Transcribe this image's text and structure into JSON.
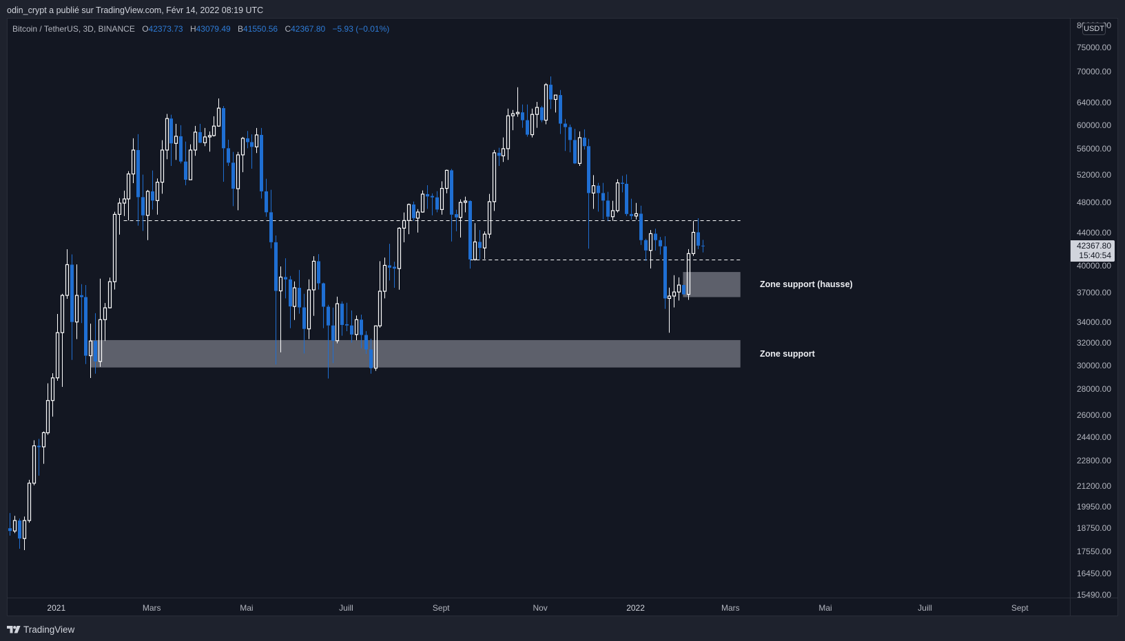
{
  "header": {
    "published_text": "odin_crypt a publié sur TradingView.com, Févr 14, 2022 08:19 UTC"
  },
  "legend": {
    "symbol": "Bitcoin / TetherUS, 3D, BINANCE",
    "ohlc": [
      {
        "label": "O",
        "value": "42373.73"
      },
      {
        "label": "H",
        "value": "43079.49"
      },
      {
        "label": "B",
        "value": "41550.56"
      },
      {
        "label": "C",
        "value": "42367.80"
      }
    ],
    "change": "−5.93 (−0.01%)"
  },
  "price_axis": {
    "currency": "USDT",
    "labels": [
      "80000.00",
      "75000.00",
      "70000.00",
      "64000.00",
      "60000.00",
      "56000.00",
      "52000.00",
      "48000.00",
      "44000.00",
      "40000.00",
      "37000.00",
      "34000.00",
      "32000.00",
      "30000.00",
      "28000.00",
      "26000.00",
      "24400.00",
      "22800.00",
      "21200.00",
      "19950.00",
      "18750.00",
      "17550.00",
      "16450.00",
      "15490.00"
    ],
    "last_price": "42367.80",
    "countdown": "15:40:54"
  },
  "time_axis": {
    "labels": [
      {
        "text": "2021",
        "bar": 9.8,
        "year": true
      },
      {
        "text": "Mars",
        "bar": 29.9
      },
      {
        "text": "Mai",
        "bar": 49.9
      },
      {
        "text": "Juill",
        "bar": 70.9
      },
      {
        "text": "Sept",
        "bar": 90.9
      },
      {
        "text": "Nov",
        "bar": 111.8
      },
      {
        "text": "2022",
        "bar": 131.9,
        "year": true
      },
      {
        "text": "Mars",
        "bar": 151.9
      },
      {
        "text": "Mai",
        "bar": 171.9
      },
      {
        "text": "Juill",
        "bar": 192.9
      },
      {
        "text": "Sept",
        "bar": 212.9
      }
    ]
  },
  "footer": {
    "brand": "TradingView",
    "logo_icon": "tradingview-logo-icon"
  },
  "colors": {
    "background": "#131722",
    "up_candle": "#ffffff",
    "down_candle": "#1f6fd3",
    "zone": "#5d606b",
    "dashed_line": "#ffffff",
    "legend_value": "#2e7bd6",
    "last_price_label": "#d1d4dc"
  },
  "chart_data": {
    "type": "candlestick",
    "title": "Bitcoin / TetherUS, 3D, BINANCE",
    "interval": "3D",
    "xlabel": "",
    "ylabel": "USDT",
    "yscale": "log",
    "ylim": [
      15490,
      80000
    ],
    "grid": false,
    "legend_position": "top-left",
    "ohlc_keys": [
      "open",
      "high",
      "low",
      "close"
    ],
    "last": {
      "open": 42373.73,
      "high": 43079.49,
      "low": 41550.56,
      "close": 42367.8,
      "change": -5.93,
      "change_pct": -0.01
    },
    "y_ticks": [
      80000,
      75000,
      70000,
      64000,
      60000,
      56000,
      52000,
      48000,
      44000,
      40000,
      37000,
      34000,
      32000,
      30000,
      28000,
      26000,
      24400,
      22800,
      21200,
      19950,
      18750,
      17550,
      16450,
      15490
    ],
    "x_ticks": [
      "2021",
      "Mars",
      "Mai",
      "Juill",
      "Sept",
      "Nov",
      "2022",
      "Mars",
      "Mai",
      "Juill",
      "Sept"
    ],
    "candles": [
      [
        18760,
        19600,
        18360,
        18610
      ],
      [
        18610,
        19440,
        18500,
        19180
      ],
      [
        19180,
        19290,
        17680,
        18210
      ],
      [
        18210,
        19400,
        17610,
        19180
      ],
      [
        19180,
        21570,
        19060,
        21360
      ],
      [
        21360,
        24170,
        21230,
        23790
      ],
      [
        23790,
        24270,
        21830,
        23700
      ],
      [
        23720,
        24800,
        22590,
        24710
      ],
      [
        24700,
        28490,
        24560,
        27110
      ],
      [
        27110,
        29330,
        25880,
        28940
      ],
      [
        28940,
        34800,
        28700,
        32970
      ],
      [
        32970,
        36880,
        28200,
        36710
      ],
      [
        36710,
        41930,
        36350,
        40110
      ],
      [
        40110,
        41320,
        30480,
        34000
      ],
      [
        34000,
        40140,
        32360,
        36710
      ],
      [
        36730,
        37920,
        33890,
        36530
      ],
      [
        36530,
        37820,
        30120,
        30850
      ],
      [
        30850,
        33830,
        28930,
        32190
      ],
      [
        32190,
        34870,
        29290,
        30340
      ],
      [
        30340,
        38520,
        29880,
        34230
      ],
      [
        34230,
        35910,
        32190,
        35420
      ],
      [
        35420,
        38650,
        35350,
        38190
      ],
      [
        38190,
        46710,
        37340,
        46370
      ],
      [
        46370,
        48600,
        43740,
        47900
      ],
      [
        47900,
        49650,
        46150,
        48480
      ],
      [
        48480,
        52520,
        45570,
        52100
      ],
      [
        52100,
        57740,
        50740,
        55820
      ],
      [
        55820,
        58440,
        44880,
        48730
      ],
      [
        48730,
        52000,
        44210,
        46240
      ],
      [
        46240,
        49750,
        43050,
        49550
      ],
      [
        49550,
        52620,
        47020,
        48250
      ],
      [
        48250,
        51420,
        46330,
        50880
      ],
      [
        50880,
        57430,
        49220,
        55820
      ],
      [
        55820,
        61940,
        54360,
        61130
      ],
      [
        61130,
        61810,
        53320,
        56900
      ],
      [
        56900,
        60200,
        54250,
        58080
      ],
      [
        58080,
        59960,
        53710,
        54000
      ],
      [
        54000,
        57200,
        50430,
        51240
      ],
      [
        51240,
        56750,
        51200,
        55820
      ],
      [
        55820,
        59850,
        54900,
        58780
      ],
      [
        58780,
        60200,
        56950,
        57010
      ],
      [
        57010,
        59490,
        56450,
        57970
      ],
      [
        57970,
        58900,
        55560,
        58200
      ],
      [
        58200,
        61530,
        58030,
        59810
      ],
      [
        59810,
        64770,
        59700,
        62990
      ],
      [
        62990,
        63370,
        50940,
        56110
      ],
      [
        56110,
        57510,
        53320,
        53820
      ],
      [
        53820,
        55520,
        47490,
        49930
      ],
      [
        49930,
        55520,
        46930,
        55050
      ],
      [
        55050,
        57970,
        52370,
        57740
      ],
      [
        57740,
        58980,
        56110,
        57110
      ],
      [
        57110,
        58400,
        52900,
        56330
      ],
      [
        56330,
        59490,
        55340,
        58310
      ],
      [
        58310,
        59490,
        48540,
        49550
      ],
      [
        49550,
        51390,
        46060,
        46650
      ],
      [
        46650,
        49780,
        42040,
        42790
      ],
      [
        42790,
        43630,
        30080,
        37190
      ],
      [
        37190,
        39900,
        31150,
        38700
      ],
      [
        38700,
        40860,
        36390,
        38440
      ],
      [
        38440,
        38830,
        33400,
        35560
      ],
      [
        35560,
        38220,
        34200,
        37520
      ],
      [
        37520,
        39500,
        34820,
        35460
      ],
      [
        35460,
        36880,
        31050,
        33330
      ],
      [
        33330,
        38450,
        32360,
        37300
      ],
      [
        37300,
        41100,
        34610,
        40510
      ],
      [
        40510,
        41350,
        37340,
        38010
      ],
      [
        38010,
        38090,
        33400,
        35530
      ],
      [
        35530,
        35720,
        28890,
        33660
      ],
      [
        33660,
        35440,
        30200,
        32210
      ],
      [
        32210,
        36580,
        31970,
        35840
      ],
      [
        35840,
        36080,
        32680,
        33710
      ],
      [
        33780,
        35940,
        33110,
        33660
      ],
      [
        33660,
        35150,
        32040,
        32790
      ],
      [
        32790,
        34640,
        32260,
        34230
      ],
      [
        34230,
        34730,
        31520,
        32750
      ],
      [
        32750,
        33120,
        31010,
        31410
      ],
      [
        31410,
        32400,
        29290,
        29760
      ],
      [
        29760,
        33650,
        29530,
        33620
      ],
      [
        33620,
        40510,
        33440,
        37150
      ],
      [
        37150,
        40940,
        36390,
        40030
      ],
      [
        40030,
        42600,
        38320,
        39760
      ],
      [
        39870,
        40450,
        37520,
        39660
      ],
      [
        39660,
        44680,
        37320,
        44560
      ],
      [
        44560,
        46620,
        42790,
        45550
      ],
      [
        45550,
        47840,
        43800,
        47710
      ],
      [
        47710,
        48120,
        45510,
        45870
      ],
      [
        45870,
        47080,
        44000,
        46680
      ],
      [
        46680,
        49680,
        46600,
        49160
      ],
      [
        49160,
        50440,
        47110,
        48830
      ],
      [
        48900,
        49260,
        46240,
        48700
      ],
      [
        48700,
        49580,
        46650,
        47020
      ],
      [
        47020,
        51010,
        46330,
        49980
      ],
      [
        49980,
        52760,
        49270,
        52650
      ],
      [
        52650,
        52860,
        42880,
        46330
      ],
      [
        46400,
        46990,
        44170,
        45960
      ],
      [
        45960,
        48410,
        43370,
        48000
      ],
      [
        48000,
        48800,
        46650,
        48190
      ],
      [
        48190,
        48300,
        39660,
        40720
      ],
      [
        40720,
        45210,
        40560,
        42830
      ],
      [
        42830,
        44320,
        40720,
        42090
      ],
      [
        42090,
        44150,
        40780,
        43800
      ],
      [
        43800,
        49190,
        43280,
        48100
      ],
      [
        48100,
        55820,
        46830,
        55380
      ],
      [
        55380,
        56190,
        53320,
        54900
      ],
      [
        54900,
        57890,
        53930,
        56040
      ],
      [
        56040,
        62900,
        54250,
        61620
      ],
      [
        61620,
        62660,
        59100,
        61990
      ],
      [
        61990,
        66900,
        61450,
        62230
      ],
      [
        62230,
        63660,
        59520,
        60840
      ],
      [
        60840,
        63660,
        58010,
        58350
      ],
      [
        58350,
        62900,
        57890,
        61860
      ],
      [
        61860,
        64130,
        59520,
        63120
      ],
      [
        63120,
        63410,
        60480,
        60840
      ],
      [
        60840,
        67700,
        60120,
        67390
      ],
      [
        67390,
        69030,
        62820,
        64590
      ],
      [
        64590,
        65450,
        62200,
        65410
      ],
      [
        65410,
        66370,
        58470,
        60240
      ],
      [
        60240,
        61050,
        55670,
        59640
      ],
      [
        59640,
        60080,
        55450,
        57460
      ],
      [
        57460,
        59340,
        53610,
        53710
      ],
      [
        53710,
        58900,
        53320,
        57850
      ],
      [
        57850,
        59260,
        55890,
        56450
      ],
      [
        56450,
        57660,
        42010,
        49310
      ],
      [
        49310,
        51930,
        47110,
        50370
      ],
      [
        50370,
        50780,
        46740,
        49310
      ],
      [
        49310,
        50780,
        45690,
        48250
      ],
      [
        48250,
        49480,
        45510,
        46060
      ],
      [
        46060,
        48220,
        45510,
        46870
      ],
      [
        46870,
        51310,
        46620,
        50780
      ],
      [
        50800,
        51820,
        49410,
        50640
      ],
      [
        50640,
        52030,
        46150,
        46420
      ],
      [
        46420,
        48510,
        45690,
        46150
      ],
      [
        46150,
        47930,
        45690,
        46460
      ],
      [
        46460,
        47550,
        42460,
        43050
      ],
      [
        43050,
        43220,
        40560,
        41790
      ],
      [
        41790,
        44320,
        39680,
        43860
      ],
      [
        43860,
        44500,
        41790,
        43050
      ],
      [
        43050,
        43450,
        41290,
        42290
      ],
      [
        42290,
        43540,
        35310,
        36390
      ],
      [
        36390,
        37540,
        32960,
        36640
      ],
      [
        36640,
        38910,
        35460,
        37070
      ],
      [
        37070,
        38670,
        36170,
        37820
      ],
      [
        37820,
        37860,
        36800,
        36820
      ],
      [
        36820,
        41950,
        36240,
        41410
      ],
      [
        41410,
        45510,
        41130,
        44030
      ],
      [
        44030,
        45850,
        41950,
        42370
      ],
      [
        42373.73,
        43079.49,
        41550.56,
        42367.8
      ]
    ],
    "annotations": {
      "zones": [
        {
          "label": "Zone support (hausse)",
          "from_bar": 141.9,
          "to_bar": 154.0,
          "top": 39270,
          "bottom": 36530
        },
        {
          "label": "Zone support",
          "from_bar": 17.0,
          "to_bar": 154.0,
          "top": 32270,
          "bottom": 29820
        }
      ],
      "lines": [
        {
          "price": 45550,
          "from_bar": 24.0,
          "to_bar": 154.0,
          "style": "dashed"
        },
        {
          "price": 40670,
          "from_bar": 97.0,
          "to_bar": 154.0,
          "style": "dashed"
        }
      ],
      "label_bar": 158.1
    }
  }
}
